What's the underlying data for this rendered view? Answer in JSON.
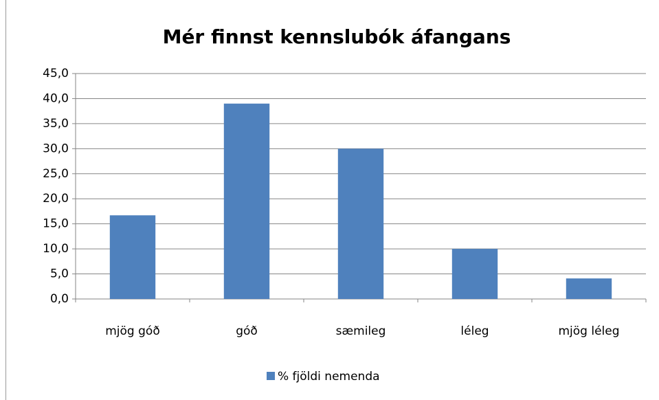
{
  "chart_data": {
    "type": "bar",
    "title": "Mér finnst kennslubók áfangans",
    "categories": [
      "mjög góð",
      "góð",
      "sæmileg",
      "léleg",
      "mjög léleg"
    ],
    "series": [
      {
        "name": "% fjöldi nemenda",
        "color": "#4f81bd",
        "values": [
          16.7,
          39.0,
          30.0,
          10.0,
          4.1
        ]
      }
    ],
    "ylim": [
      0,
      45
    ],
    "yticks": [
      {
        "value": 0,
        "label": "0,0"
      },
      {
        "value": 5,
        "label": "5,0"
      },
      {
        "value": 10,
        "label": "10,0"
      },
      {
        "value": 15,
        "label": "15,0"
      },
      {
        "value": 20,
        "label": "20,0"
      },
      {
        "value": 25,
        "label": "25,0"
      },
      {
        "value": 30,
        "label": "30,0"
      },
      {
        "value": 35,
        "label": "35,0"
      },
      {
        "value": 40,
        "label": "40,0"
      },
      {
        "value": 45,
        "label": "45,0"
      }
    ],
    "grid": true,
    "legend": "bottom"
  }
}
